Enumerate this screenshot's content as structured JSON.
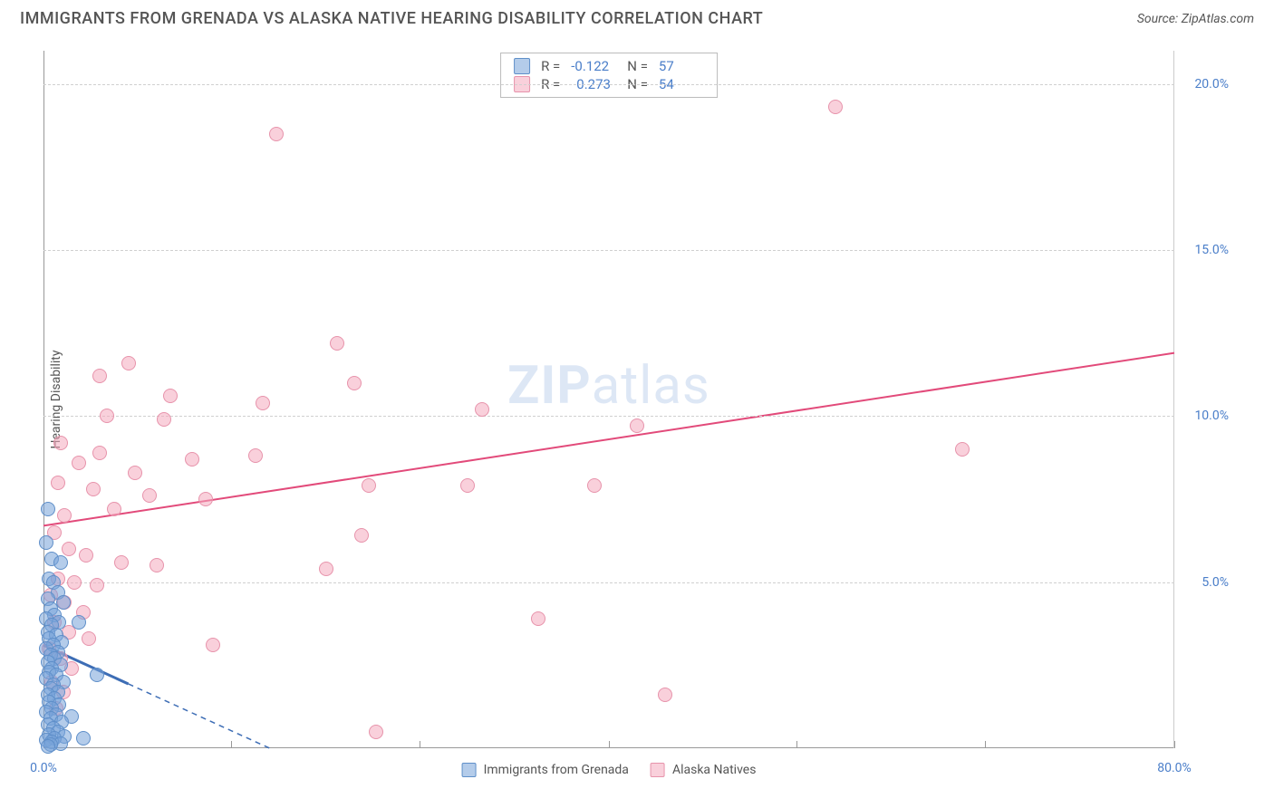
{
  "title": "IMMIGRANTS FROM GRENADA VS ALASKA NATIVE HEARING DISABILITY CORRELATION CHART",
  "source": "Source: ZipAtlas.com",
  "y_axis_label": "Hearing Disability",
  "watermark": {
    "bold": "ZIP",
    "rest": "atlas"
  },
  "chart": {
    "type": "scatter",
    "xlim": [
      0,
      80
    ],
    "ylim": [
      0,
      21
    ],
    "x_ticks": [
      0,
      13.3,
      26.6,
      40,
      53.3,
      66.6,
      80
    ],
    "x_tick_labels": {
      "0": "0.0%",
      "80": "80.0%"
    },
    "y_ticks": [
      5,
      10,
      15,
      20
    ],
    "y_tick_labels": {
      "5": "5.0%",
      "10": "10.0%",
      "15": "15.0%",
      "20": "20.0%"
    },
    "grid_color": "#d0d0d0",
    "background_color": "#ffffff",
    "axis_label_color": "#4a7ec9",
    "series": [
      {
        "name": "Immigrants from Grenada",
        "marker_fill": "rgba(119,162,216,0.55)",
        "marker_stroke": "#5f8fc9",
        "marker_size": 16,
        "trend": {
          "x1": 0,
          "y1": 3.1,
          "x2": 16,
          "y2": 0,
          "color": "#3d6db5",
          "width": 2,
          "dash": "6,5",
          "solid_until_x": 6
        },
        "stats": {
          "R": "-0.122",
          "N": "57"
        },
        "points": [
          [
            0.3,
            7.2
          ],
          [
            0.2,
            6.2
          ],
          [
            0.6,
            5.7
          ],
          [
            1.2,
            5.6
          ],
          [
            0.4,
            5.1
          ],
          [
            0.7,
            5.0
          ],
          [
            1.0,
            4.7
          ],
          [
            0.3,
            4.5
          ],
          [
            1.4,
            4.4
          ],
          [
            0.5,
            4.2
          ],
          [
            0.8,
            4.0
          ],
          [
            0.2,
            3.9
          ],
          [
            1.1,
            3.8
          ],
          [
            0.6,
            3.7
          ],
          [
            2.5,
            3.8
          ],
          [
            0.3,
            3.5
          ],
          [
            0.9,
            3.4
          ],
          [
            0.4,
            3.3
          ],
          [
            1.3,
            3.2
          ],
          [
            0.7,
            3.1
          ],
          [
            0.2,
            3.0
          ],
          [
            1.0,
            2.9
          ],
          [
            0.5,
            2.8
          ],
          [
            0.8,
            2.7
          ],
          [
            0.3,
            2.6
          ],
          [
            1.2,
            2.5
          ],
          [
            0.6,
            2.4
          ],
          [
            0.4,
            2.3
          ],
          [
            0.9,
            2.2
          ],
          [
            0.2,
            2.1
          ],
          [
            1.4,
            2.0
          ],
          [
            0.7,
            1.9
          ],
          [
            0.5,
            1.8
          ],
          [
            3.8,
            2.2
          ],
          [
            1.0,
            1.7
          ],
          [
            0.3,
            1.6
          ],
          [
            0.8,
            1.5
          ],
          [
            0.4,
            1.4
          ],
          [
            1.1,
            1.3
          ],
          [
            0.6,
            1.2
          ],
          [
            0.2,
            1.1
          ],
          [
            0.9,
            1.0
          ],
          [
            2.0,
            0.95
          ],
          [
            0.5,
            0.9
          ],
          [
            1.3,
            0.8
          ],
          [
            0.3,
            0.7
          ],
          [
            0.7,
            0.6
          ],
          [
            1.0,
            0.5
          ],
          [
            0.4,
            0.4
          ],
          [
            1.5,
            0.35
          ],
          [
            0.8,
            0.3
          ],
          [
            0.2,
            0.25
          ],
          [
            0.6,
            0.2
          ],
          [
            2.8,
            0.3
          ],
          [
            1.2,
            0.15
          ],
          [
            0.5,
            0.1
          ],
          [
            0.3,
            0.05
          ]
        ]
      },
      {
        "name": "Alaska Natives",
        "marker_fill": "rgba(244,170,190,0.55)",
        "marker_stroke": "#e793ab",
        "marker_size": 16,
        "trend": {
          "x1": 0,
          "y1": 6.7,
          "x2": 80,
          "y2": 11.9,
          "color": "#e24a7a",
          "width": 2
        },
        "stats": {
          "R": "0.273",
          "N": "54"
        },
        "points": [
          [
            56.0,
            19.3
          ],
          [
            16.5,
            18.5
          ],
          [
            20.8,
            12.2
          ],
          [
            6.0,
            11.6
          ],
          [
            4.0,
            11.2
          ],
          [
            22.0,
            11.0
          ],
          [
            9.0,
            10.6
          ],
          [
            15.5,
            10.4
          ],
          [
            31.0,
            10.2
          ],
          [
            4.5,
            10.0
          ],
          [
            8.5,
            9.9
          ],
          [
            42.0,
            9.7
          ],
          [
            1.2,
            9.2
          ],
          [
            65.0,
            9.0
          ],
          [
            4.0,
            8.9
          ],
          [
            15.0,
            8.8
          ],
          [
            10.5,
            8.7
          ],
          [
            2.5,
            8.6
          ],
          [
            6.5,
            8.3
          ],
          [
            1.0,
            8.0
          ],
          [
            23.0,
            7.9
          ],
          [
            30.0,
            7.9
          ],
          [
            39.0,
            7.9
          ],
          [
            3.5,
            7.8
          ],
          [
            7.5,
            7.6
          ],
          [
            11.5,
            7.5
          ],
          [
            5.0,
            7.2
          ],
          [
            1.5,
            7.0
          ],
          [
            0.8,
            6.5
          ],
          [
            22.5,
            6.4
          ],
          [
            1.8,
            6.0
          ],
          [
            3.0,
            5.8
          ],
          [
            5.5,
            5.6
          ],
          [
            8.0,
            5.5
          ],
          [
            20.0,
            5.4
          ],
          [
            1.0,
            5.1
          ],
          [
            2.2,
            5.0
          ],
          [
            3.8,
            4.9
          ],
          [
            0.5,
            4.6
          ],
          [
            1.5,
            4.4
          ],
          [
            2.8,
            4.1
          ],
          [
            35.0,
            3.9
          ],
          [
            0.8,
            3.8
          ],
          [
            1.8,
            3.5
          ],
          [
            3.2,
            3.3
          ],
          [
            12.0,
            3.1
          ],
          [
            0.4,
            3.0
          ],
          [
            1.2,
            2.7
          ],
          [
            2.0,
            2.4
          ],
          [
            0.6,
            2.0
          ],
          [
            1.4,
            1.7
          ],
          [
            44.0,
            1.6
          ],
          [
            0.9,
            1.2
          ],
          [
            23.5,
            0.5
          ]
        ]
      }
    ]
  },
  "stats_labels": {
    "R": "R =",
    "N": "N ="
  },
  "legend": {
    "series1": "Immigrants from Grenada",
    "series2": "Alaska Natives"
  }
}
